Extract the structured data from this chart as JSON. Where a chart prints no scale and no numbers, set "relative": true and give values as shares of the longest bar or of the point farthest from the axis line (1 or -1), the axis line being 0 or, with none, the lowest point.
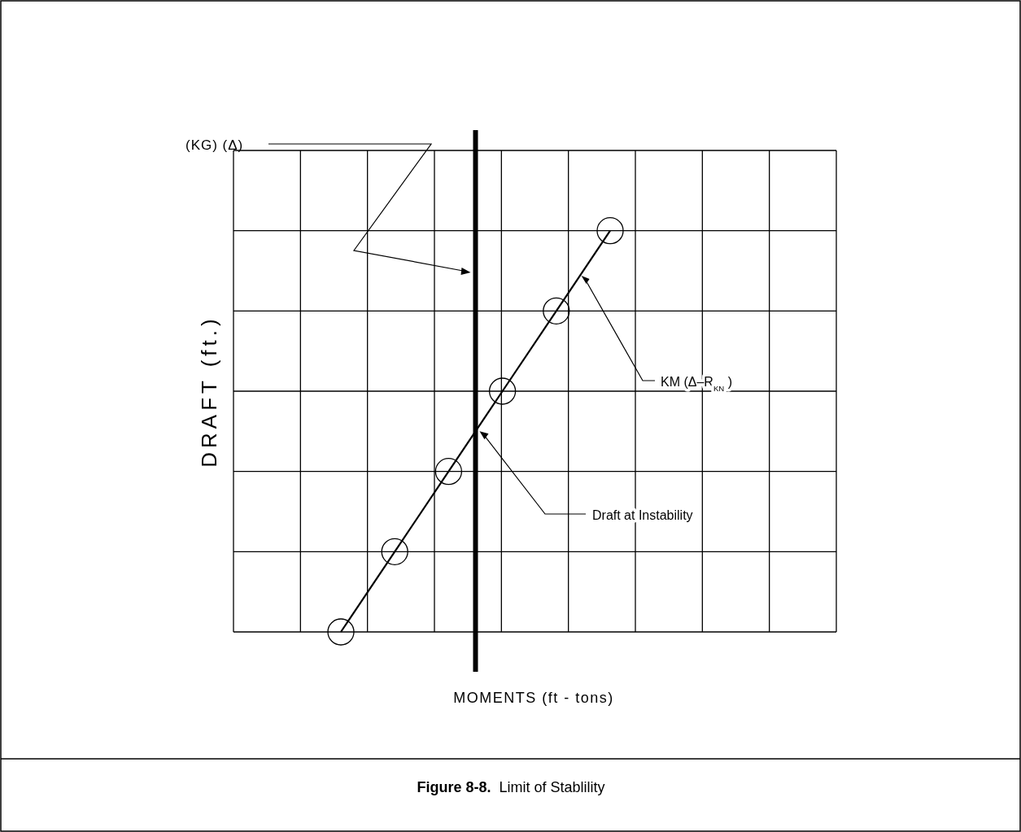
{
  "chart_data": {
    "type": "line",
    "title": "Figure 8-8.",
    "subtitle": "Limit of Stablility",
    "xlabel": "MOMENTS (ft - tons)",
    "ylabel": "DRAFT (ft.)",
    "relative": true,
    "grid": true,
    "marker": "circle",
    "categories": [
      null,
      null,
      null,
      null,
      null,
      null
    ],
    "series": [
      {
        "name": "KM (Δ–R$_{KN}$)",
        "color": "#000000",
        "values": [
          0,
          0.2,
          0.4,
          0.6,
          0.8,
          1
        ]
      }
    ],
    "annotations": [
      "(KG) (Δ)",
      "Draft at Instability"
    ]
  }
}
